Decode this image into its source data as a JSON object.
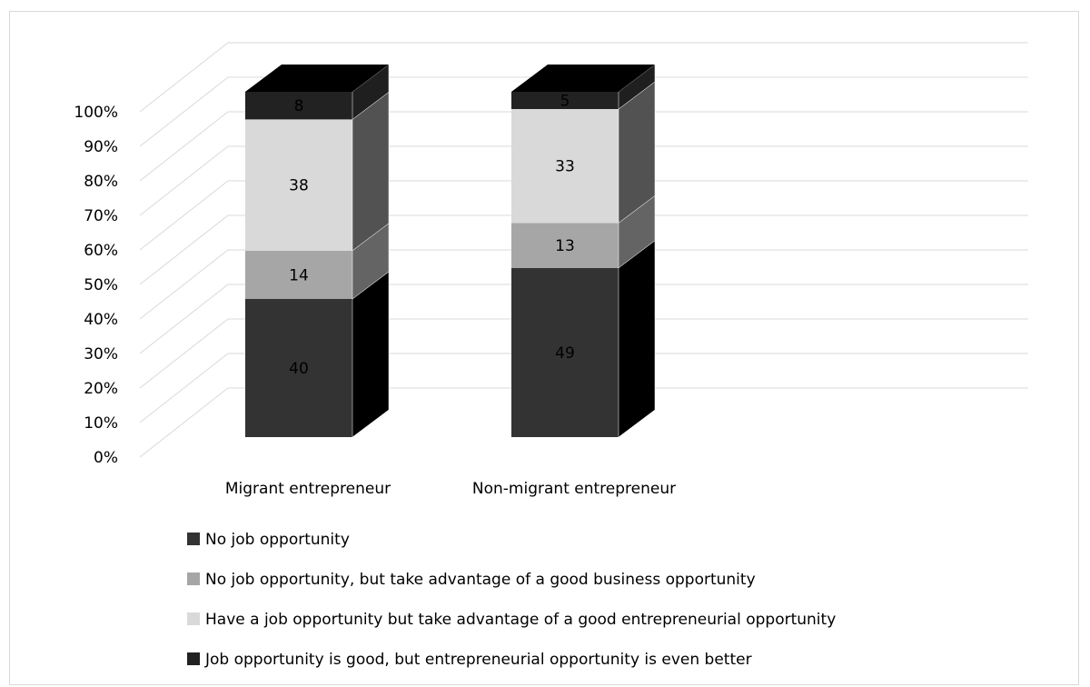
{
  "chart_data": {
    "type": "bar",
    "stacked": true,
    "percent": true,
    "three_d": true,
    "categories": [
      "Migrant entrepreneur",
      "Non-migrant entrepreneur"
    ],
    "series": [
      {
        "name": "No job opportunity",
        "values": [
          40,
          49
        ],
        "color": "#333333"
      },
      {
        "name": "No job opportunity, but take advantage of a good business opportunity",
        "values": [
          14,
          13
        ],
        "color": "#a6a6a6"
      },
      {
        "name": "Have a job opportunity but take advantage of a good entrepreneurial opportunity",
        "values": [
          38,
          33
        ],
        "color": "#d9d9d9"
      },
      {
        "name": "Job opportunity is good, but entrepreneurial opportunity is even better",
        "values": [
          8,
          5
        ],
        "color": "#222222"
      }
    ],
    "y_ticks": [
      "0%",
      "10%",
      "20%",
      "30%",
      "40%",
      "50%",
      "60%",
      "70%",
      "80%",
      "90%",
      "100%"
    ],
    "ylim": [
      0,
      100
    ],
    "grid": true,
    "legend_position": "bottom"
  }
}
